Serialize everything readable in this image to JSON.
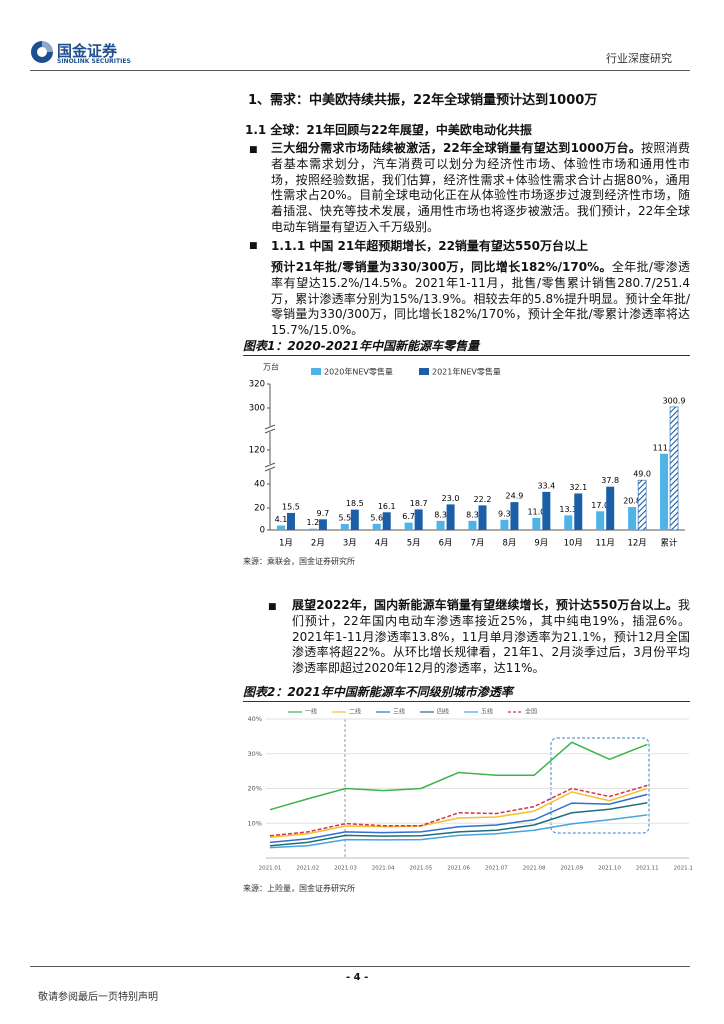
{
  "header": {
    "logo_cn": "国金证券",
    "logo_en": "SINOLINK SECURITIES",
    "category": "行业深度研究"
  },
  "section_title": "1、需求：中美欧持续共振，22年全球销量预计达到1000万",
  "subsection_title": "1.1 全球：21年回顾与22年展望，中美欧电动化共振",
  "bullet1": {
    "bold": "三大细分需求市场陆续被激活，22年全球销量有望达到1000万台。",
    "text": "按照消费者基本需求划分，汽车消费可以划分为经济性市场、体验性市场和通用性市场，按照经验数据，我们估算，经济性需求+体验性需求合计占据80%，通用性需求占20%。目前全球电动化正在从体验性市场逐步过渡到经济性市场，随着插混、快充等技术发展，通用性市场也将逐步被激活。我们预计，22年全球电动车销量有望迈入千万级别。"
  },
  "bullet2_title": "1.1.1 中国 21年超预期增长，22销量有望达550万台以上",
  "para2": {
    "bold": "预计21年批/零销量为330/300万，同比增长182%/170%。",
    "text": "全年批/零渗透率有望达15.2%/14.5%。2021年1-11月，批售/零售累计销售280.7/251.4万，累计渗透率分别为15%/13.9%。相较去年的5.8%提升明显。预计全年批/零销量为330/300万，同比增长182%/170%，预计全年批/零累计渗透率将达15.7%/15.0%。"
  },
  "fig1": {
    "title": "图表1：2020-2021年中国新能源车零售量",
    "source": "来源：乘联会，国金证券研究所",
    "chart_data": {
      "type": "bar",
      "y_unit": "万台",
      "categories": [
        "1月",
        "2月",
        "3月",
        "4月",
        "5月",
        "6月",
        "7月",
        "8月",
        "9月",
        "10月",
        "11月",
        "12月",
        "累计"
      ],
      "series": [
        {
          "name": "2020年NEV零售量",
          "color": "#4fb3e8",
          "values": [
            4.1,
            1.2,
            5.5,
            5.6,
            6.7,
            8.3,
            8.3,
            9.3,
            11.0,
            13.3,
            17.0,
            20.8,
            111.1
          ],
          "value_labels": [
            "4.1",
            "1.2",
            "5.5",
            "5.6",
            "6.7",
            "8.3",
            "8.3",
            "9.3",
            "11.0",
            "13.3",
            "17.0",
            "20.8",
            "111.1"
          ]
        },
        {
          "name": "2021年NEV零售量",
          "color": "#1a5fa8",
          "values": [
            15.5,
            9.7,
            18.5,
            16.1,
            18.7,
            23.0,
            22.2,
            24.9,
            33.4,
            32.1,
            37.8,
            49.0,
            300.9
          ],
          "value_labels": [
            "15.5",
            "9.7",
            "18.5",
            "16.1",
            "18.7",
            "23.0",
            "22.2",
            "24.9",
            "33.4",
            "32.1",
            "37.8",
            "49.0",
            "300.9"
          ],
          "hatched": [
            11,
            12
          ]
        }
      ],
      "ylim": [
        0,
        320
      ],
      "yticks": [
        0,
        20,
        40,
        120,
        300,
        320
      ],
      "axis_breaks": true
    }
  },
  "bullet3": {
    "bold": "展望2022年，国内新能源车销量有望继续增长，预计达550万台以上。",
    "text": "我们预计，22年国内电动车渗透率接近25%，其中纯电19%，插混6%。2021年1-11月渗透率13.8%，11月单月渗透率为21.1%，预计12月全国渗透率将超22%。从环比增长规律看，21年1、2月淡季过后，3月份平均渗透率即超过2020年12月的渗透率，达11%。"
  },
  "fig2": {
    "title": "图表2：2021年中国新能源车不同级别城市渗透率",
    "source": "来源：上险量，国金证券研究所",
    "chart_data": {
      "type": "line",
      "categories": [
        "2021.01",
        "2021.02",
        "2021.03",
        "2021.04",
        "2021.05",
        "2021.06",
        "2021.07",
        "2021.08",
        "2021.09",
        "2021.10",
        "2021.11",
        "2021.12"
      ],
      "series": [
        {
          "name": "一线",
          "color": "#3cb44b",
          "values": [
            13.9,
            17.0,
            20.0,
            19.4,
            20.0,
            24.6,
            23.8,
            23.8,
            33.3,
            28.4,
            32.7,
            null
          ]
        },
        {
          "name": "二线",
          "color": "#f2c12e",
          "values": [
            6.0,
            7.0,
            9.2,
            9.0,
            9.2,
            11.5,
            11.8,
            13.5,
            19.0,
            16.5,
            20.0,
            null
          ]
        },
        {
          "name": "三线",
          "color": "#2f6fd0",
          "values": [
            4.5,
            5.5,
            7.5,
            7.3,
            7.5,
            9.0,
            9.5,
            11.0,
            15.8,
            15.5,
            18.3,
            null
          ]
        },
        {
          "name": "四线",
          "color": "#1f6f78",
          "values": [
            3.5,
            4.5,
            6.5,
            6.3,
            6.4,
            7.5,
            8.0,
            9.5,
            13.0,
            14.0,
            15.9,
            null
          ]
        },
        {
          "name": "五线",
          "color": "#4aa3df",
          "values": [
            3.0,
            3.5,
            5.3,
            5.2,
            5.3,
            6.5,
            7.0,
            8.0,
            9.8,
            11.0,
            12.4,
            null
          ]
        },
        {
          "name": "全国",
          "color": "#d6334b",
          "dashed": true,
          "values": [
            6.4,
            7.5,
            9.9,
            9.3,
            9.3,
            13.0,
            12.8,
            14.8,
            20.0,
            17.7,
            20.9,
            null
          ]
        }
      ],
      "ylim": [
        0,
        40
      ],
      "yticks": [
        {
          "value": 10,
          "label": "10%"
        },
        {
          "value": 20,
          "label": "20%"
        },
        {
          "value": 30,
          "label": "30%"
        },
        {
          "value": 40,
          "label": "40%"
        }
      ],
      "grid": true
    }
  },
  "footer": {
    "page": "- 4 -",
    "disclaimer": "敬请参阅最后一页特别声明"
  }
}
